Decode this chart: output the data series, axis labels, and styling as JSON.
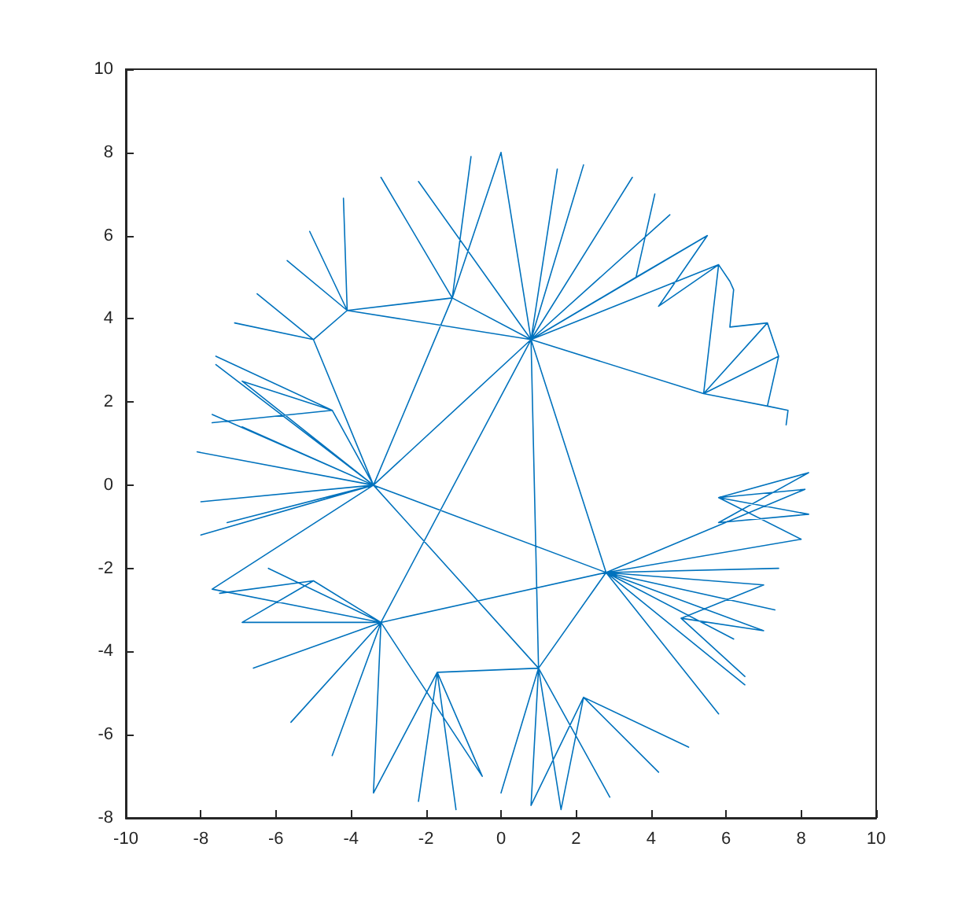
{
  "chart_data": {
    "type": "line",
    "color": "#0072bd",
    "x": [
      -3.4,
      -8.1,
      -3.4,
      -8.0,
      -3.4,
      -7.7,
      -3.4,
      -7.3,
      -3.4,
      -6.9,
      -3.4,
      -7.6,
      -3.4,
      -8.0,
      -3.4,
      -4.5,
      -7.6,
      -4.5,
      -7.7,
      -4.5,
      -6.9,
      -3.4,
      -7.7,
      -3.2,
      -6.6,
      -3.2,
      -5.6,
      -3.2,
      -5.0,
      -7.5,
      -5.0,
      -6.9,
      -3.2,
      -6.2,
      -3.2,
      -4.5,
      -3.2,
      -3.4,
      -3.2,
      2.8,
      7.3,
      2.8,
      6.5,
      2.8,
      7.4,
      2.8,
      5.8,
      2.8,
      6.2,
      2.8,
      8.0,
      5.8,
      8.2,
      5.8,
      8.2,
      5.8,
      8.1,
      2.8,
      7.0,
      4.8,
      6.5,
      4.8,
      7.0,
      2.8,
      1.0,
      2.9,
      1.0,
      0.0,
      1.0,
      1.6,
      2.2,
      4.2,
      2.2,
      5.0,
      2.2,
      0.8,
      1.0,
      -1.7,
      -2.2,
      -1.7,
      -1.2,
      -1.7,
      -3.4,
      -1.7,
      -0.5,
      -3.2,
      0.8,
      2.8,
      0.8,
      1.0,
      0.8,
      1.5,
      0.8,
      3.5,
      0.8,
      4.5,
      0.8,
      3.6,
      4.1,
      3.6,
      5.5,
      4.2,
      5.8,
      0.8,
      5.5,
      0.8,
      2.2,
      0.8,
      0.0,
      0.8,
      -2.2,
      0.8,
      -1.3,
      -0.8,
      -1.3,
      -3.2,
      -1.3,
      0.0,
      -1.3,
      -3.4,
      -1.3,
      -4.1,
      -5.1,
      -4.1,
      -4.2,
      -4.1,
      -5.7,
      -4.1,
      0.8,
      -4.1,
      -5.0,
      -7.1,
      -5.0,
      -6.5,
      -5.0,
      -3.4,
      0.8,
      -3.4,
      2.8,
      -3.4,
      1.0,
      0.8,
      5.4,
      7.1,
      5.4,
      7.4,
      5.4,
      7.1,
      5.4,
      5.8,
      6.1,
      6.2,
      6.1,
      7.1,
      7.4,
      7.1,
      7.65,
      7.6
    ],
    "values": [
      0.0,
      0.8,
      0.0,
      -0.4,
      0.0,
      1.7,
      0.0,
      -0.9,
      0.0,
      1.4,
      0.0,
      2.9,
      0.0,
      -1.2,
      0.0,
      1.8,
      3.1,
      1.8,
      1.5,
      1.8,
      2.5,
      0.0,
      -2.5,
      -3.3,
      -4.4,
      -3.3,
      -5.7,
      -3.3,
      -2.3,
      -2.6,
      -2.3,
      -3.3,
      -3.3,
      -2.0,
      -3.3,
      -6.5,
      -3.3,
      -7.4,
      -3.3,
      -2.1,
      -3.0,
      -2.1,
      -4.8,
      -2.1,
      -2.0,
      -2.1,
      -5.5,
      -2.1,
      -3.7,
      -2.1,
      -1.3,
      -0.3,
      0.3,
      -0.9,
      -0.7,
      -0.3,
      -0.1,
      -2.1,
      -2.4,
      -3.2,
      -4.6,
      -3.2,
      -3.5,
      -2.1,
      -4.4,
      -7.5,
      -4.4,
      -7.4,
      -4.4,
      -7.8,
      -5.1,
      -6.9,
      -5.1,
      -6.3,
      -5.1,
      -7.7,
      -4.4,
      -4.5,
      -7.6,
      -4.5,
      -7.8,
      -4.5,
      -7.4,
      -4.5,
      -7.0,
      -3.3,
      3.5,
      -2.1,
      3.5,
      -4.4,
      3.5,
      7.6,
      3.5,
      7.4,
      3.5,
      6.5,
      3.5,
      5.0,
      7.0,
      5.0,
      6.0,
      4.3,
      5.3,
      3.5,
      6.0,
      3.5,
      7.7,
      3.5,
      8.0,
      3.5,
      7.3,
      3.5,
      4.5,
      7.9,
      4.5,
      7.4,
      4.5,
      8.0,
      4.5,
      0.0,
      4.5,
      4.2,
      6.1,
      4.2,
      6.9,
      4.2,
      5.4,
      4.2,
      3.5,
      4.2,
      3.5,
      3.9,
      3.5,
      4.6,
      3.5,
      0.0,
      3.5,
      0.0,
      -2.1,
      0.0,
      -4.4,
      3.5,
      2.2,
      3.9,
      2.2,
      3.1,
      2.2,
      1.9,
      2.2,
      5.3,
      4.9,
      4.7,
      3.8,
      3.9,
      3.1,
      1.9,
      1.8,
      1.45
    ],
    "xlim": [
      -10,
      10
    ],
    "xticks": [
      -10,
      -8,
      -6,
      -4,
      -2,
      0,
      2,
      4,
      6,
      8,
      10
    ],
    "ylim": [
      -8,
      10
    ],
    "yticks": [
      -8,
      -6,
      -4,
      -2,
      0,
      2,
      4,
      6,
      8,
      10
    ]
  }
}
